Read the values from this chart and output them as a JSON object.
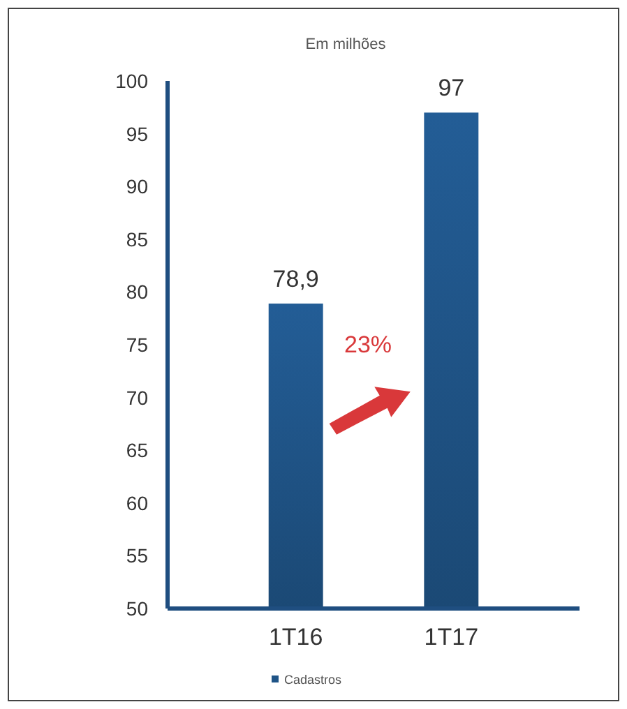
{
  "chart_data": {
    "type": "bar",
    "title": "Em milhões",
    "categories": [
      "1T16",
      "1T17"
    ],
    "series": [
      {
        "name": "Cadastros",
        "color": "#1f5487",
        "values": [
          78.9,
          97
        ]
      }
    ],
    "ylim": [
      50,
      100
    ],
    "yticks": [
      50,
      55,
      60,
      65,
      70,
      75,
      80,
      85,
      90,
      95,
      100
    ],
    "value_labels": [
      "78,9",
      "97"
    ],
    "legend": "bottom",
    "grid": false,
    "annotations": [
      "23%"
    ]
  }
}
